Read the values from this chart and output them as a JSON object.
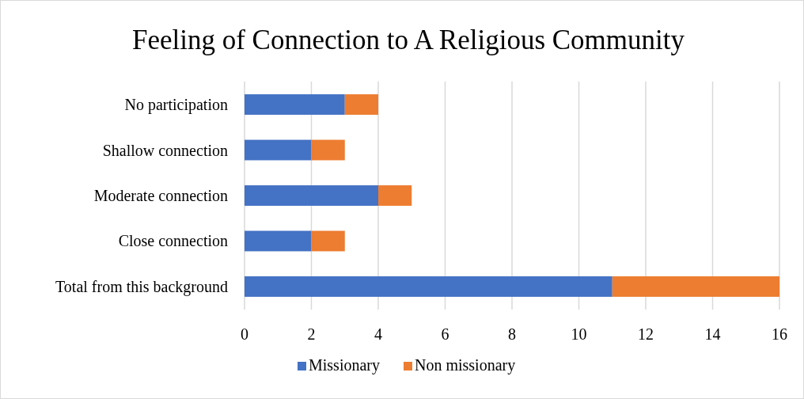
{
  "chart_data": {
    "type": "bar",
    "orientation": "horizontal",
    "stacked": true,
    "title": "Feeling of Connection to A Religious Community",
    "categories": [
      "No participation",
      "Shallow connection",
      "Moderate connection",
      "Close connection",
      "Total from this background"
    ],
    "series": [
      {
        "name": "Missionary",
        "color": "#4472c4",
        "values": [
          3,
          2,
          4,
          2,
          11
        ]
      },
      {
        "name": "Non missionary",
        "color": "#ed7d31",
        "values": [
          1,
          1,
          1,
          1,
          5
        ]
      }
    ],
    "xlim": [
      0,
      16
    ],
    "xticks": [
      0,
      2,
      4,
      6,
      8,
      10,
      12,
      14,
      16
    ],
    "grid": "x",
    "legend": "bottom"
  }
}
